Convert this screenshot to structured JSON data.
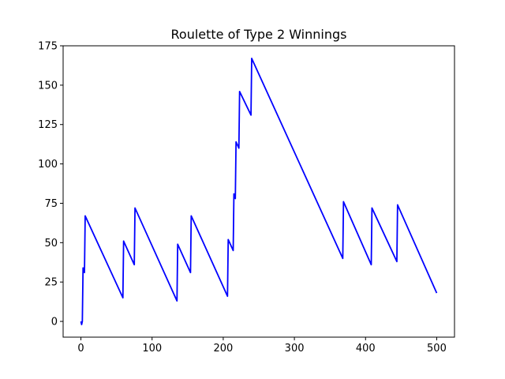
{
  "chart_data": {
    "type": "line",
    "title": "Roulette of Type 2 Winnings",
    "xlabel": "",
    "ylabel": "",
    "xlim": [
      -25,
      525
    ],
    "ylim": [
      -10,
      175
    ],
    "xticks": [
      0,
      100,
      200,
      300,
      400,
      500
    ],
    "yticks": [
      0,
      25,
      50,
      75,
      100,
      125,
      150,
      175
    ],
    "grid": false,
    "series": [
      {
        "color": "#0000ff",
        "x": [
          0,
          1,
          2,
          3,
          4,
          5,
          6,
          7,
          59,
          60,
          75,
          76,
          135,
          136,
          154,
          155,
          206,
          207,
          214,
          215,
          216,
          217,
          218,
          219,
          222,
          223,
          239,
          240,
          368,
          369,
          408,
          409,
          444,
          445,
          500
        ],
        "y": [
          0,
          -2,
          0,
          34,
          33,
          31,
          67,
          66,
          15,
          51,
          36,
          72,
          13,
          49,
          31,
          67,
          16,
          52,
          45,
          81,
          80,
          78,
          114,
          113,
          110,
          146,
          131,
          167,
          40,
          76,
          36,
          72,
          38,
          74,
          18
        ]
      }
    ]
  }
}
